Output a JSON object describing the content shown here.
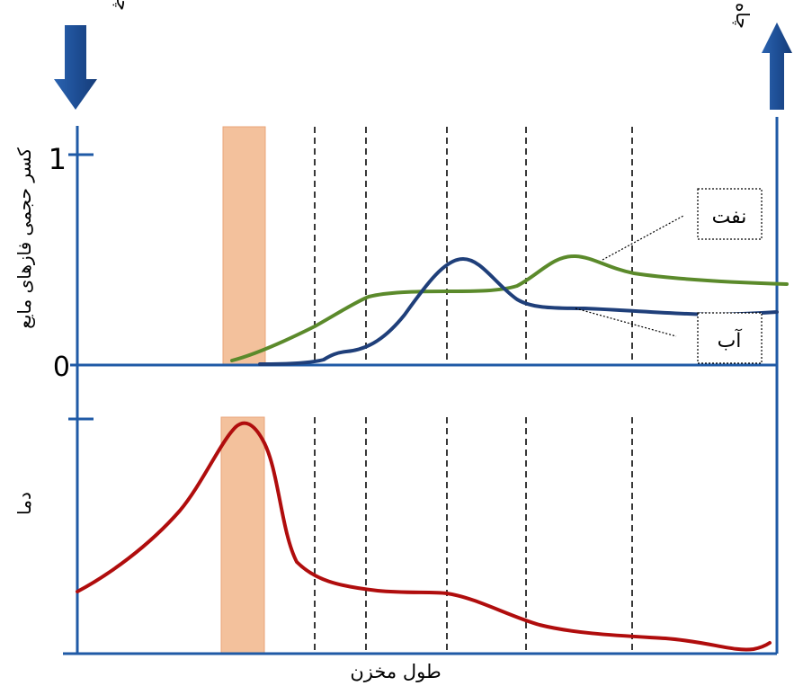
{
  "labels": {
    "injection_well": "چاه تزریق هوا",
    "production_well": "چاه برداشت",
    "y_axis_top": "کسر حجمی فازهای مایع",
    "y_axis_bottom": "دما",
    "x_axis": "طول مخزن",
    "tick_one": "1",
    "tick_zero": "0"
  },
  "legend": {
    "oil": "نفت",
    "water": "آب"
  },
  "colors": {
    "axis": "#1f5aa6",
    "arrow": "#1e4f96",
    "oil": "#5b8a2b",
    "water": "#1f3f7a",
    "temperature": "#b00d0d",
    "combustion_zone": "#f3c19c"
  }
}
